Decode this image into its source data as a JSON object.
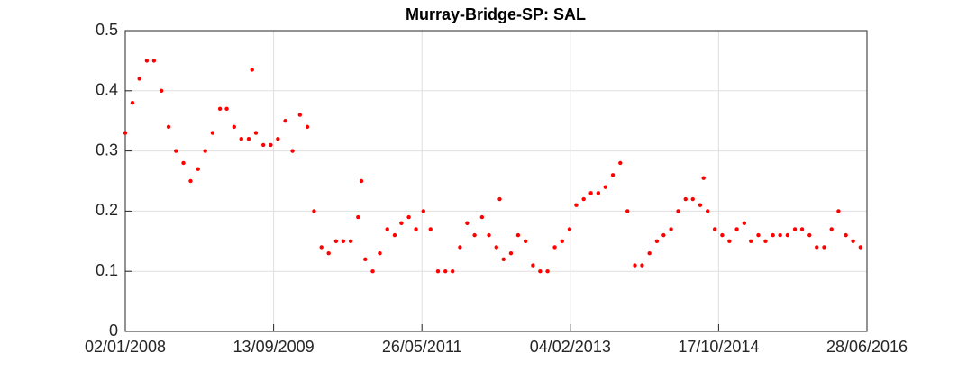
{
  "chart_data": {
    "type": "scatter",
    "title": "Murray-Bridge-SP: SAL",
    "color": "#ff0000",
    "grid": true,
    "xlim": [
      "02/01/2008",
      "28/06/2016"
    ],
    "xticks": [
      "02/01/2008",
      "13/09/2009",
      "26/05/2011",
      "04/02/2013",
      "17/10/2014",
      "28/06/2016"
    ],
    "ylim": [
      0,
      0.5
    ],
    "yticks": [
      0,
      0.1,
      0.2,
      0.3,
      0.4,
      0.5
    ],
    "x": [
      "02/01/2008",
      "01/02/2008",
      "01/03/2008",
      "01/04/2008",
      "01/05/2008",
      "01/06/2008",
      "01/07/2008",
      "01/08/2008",
      "01/09/2008",
      "01/10/2008",
      "01/11/2008",
      "01/12/2008",
      "01/01/2009",
      "01/02/2009",
      "01/03/2009",
      "01/04/2009",
      "01/05/2009",
      "01/06/2009",
      "01/07/2009",
      "01/08/2009",
      "01/09/2009",
      "01/10/2009",
      "01/11/2009",
      "01/12/2009",
      "01/01/2010",
      "01/02/2010",
      "01/03/2010",
      "01/04/2010",
      "01/05/2010",
      "01/06/2010",
      "01/07/2010",
      "01/08/2010",
      "01/09/2010",
      "01/10/2010",
      "01/11/2010",
      "01/12/2010",
      "01/01/2011",
      "01/02/2011",
      "01/03/2011",
      "01/04/2011",
      "01/05/2011",
      "01/06/2011",
      "01/07/2011",
      "01/08/2011",
      "01/09/2011",
      "01/10/2011",
      "01/11/2011",
      "01/12/2011",
      "01/01/2012",
      "01/02/2012",
      "01/03/2012",
      "01/04/2012",
      "01/05/2012",
      "01/06/2012",
      "01/07/2012",
      "01/08/2012",
      "01/09/2012",
      "01/10/2012",
      "01/11/2012",
      "01/12/2012",
      "01/01/2013",
      "01/02/2013",
      "01/03/2013",
      "01/04/2013",
      "01/05/2013",
      "01/06/2013",
      "01/07/2013",
      "01/08/2013",
      "01/09/2013",
      "01/10/2013",
      "01/11/2013",
      "01/12/2013",
      "01/01/2014",
      "01/02/2014",
      "01/03/2014",
      "01/04/2014",
      "01/05/2014",
      "01/06/2014",
      "01/07/2014",
      "01/08/2014",
      "01/09/2014",
      "01/10/2014",
      "01/11/2014",
      "01/12/2014",
      "01/01/2015",
      "01/02/2015",
      "01/03/2015",
      "01/04/2015",
      "01/05/2015",
      "01/06/2015",
      "01/07/2015",
      "01/08/2015",
      "01/09/2015",
      "01/10/2015",
      "01/11/2015",
      "01/12/2015",
      "01/01/2016",
      "01/02/2016",
      "01/03/2016",
      "01/04/2016",
      "01/05/2016",
      "01/06/2016",
      "15/06/2009",
      "15/09/2010",
      "15/04/2012",
      "15/08/2014"
    ],
    "values": [
      0.33,
      0.38,
      0.42,
      0.45,
      0.45,
      0.4,
      0.34,
      0.3,
      0.28,
      0.25,
      0.27,
      0.3,
      0.33,
      0.37,
      0.37,
      0.34,
      0.32,
      0.32,
      0.33,
      0.31,
      0.31,
      0.32,
      0.35,
      0.3,
      0.36,
      0.34,
      0.2,
      0.14,
      0.13,
      0.15,
      0.15,
      0.15,
      0.19,
      0.12,
      0.1,
      0.13,
      0.17,
      0.16,
      0.18,
      0.19,
      0.17,
      0.2,
      0.17,
      0.1,
      0.1,
      0.1,
      0.14,
      0.18,
      0.16,
      0.19,
      0.16,
      0.14,
      0.12,
      0.13,
      0.16,
      0.15,
      0.11,
      0.1,
      0.1,
      0.14,
      0.15,
      0.17,
      0.21,
      0.22,
      0.23,
      0.23,
      0.24,
      0.26,
      0.28,
      0.2,
      0.11,
      0.11,
      0.13,
      0.15,
      0.16,
      0.17,
      0.2,
      0.22,
      0.22,
      0.21,
      0.2,
      0.17,
      0.16,
      0.15,
      0.17,
      0.18,
      0.15,
      0.16,
      0.15,
      0.16,
      0.16,
      0.16,
      0.17,
      0.17,
      0.16,
      0.14,
      0.14,
      0.17,
      0.2,
      0.16,
      0.15,
      0.14,
      0.435,
      0.25,
      0.22,
      0.255
    ]
  }
}
